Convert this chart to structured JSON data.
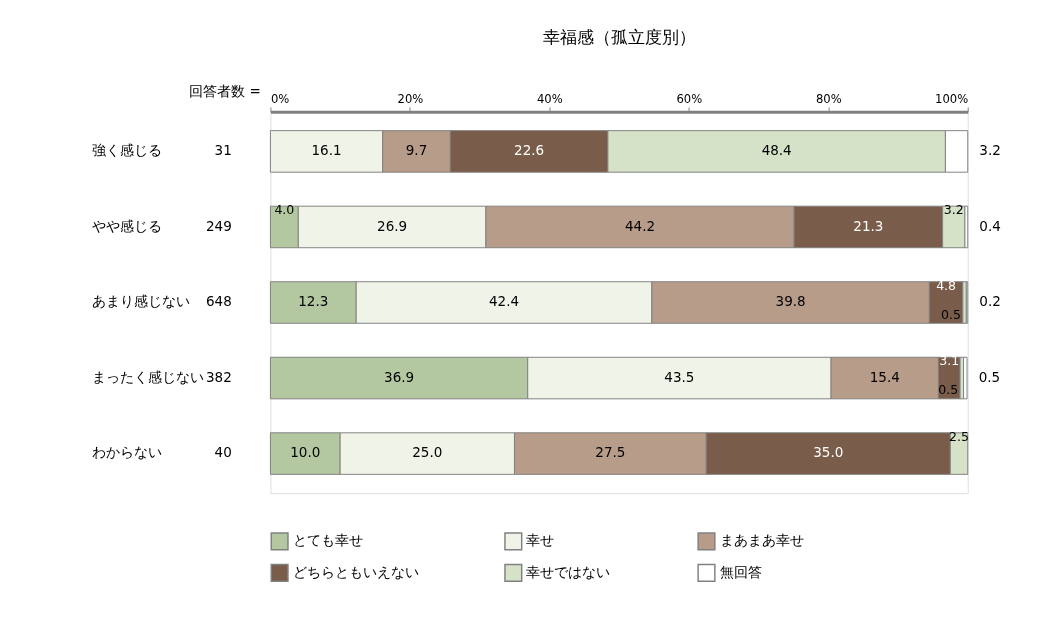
{
  "chart_data": {
    "type": "bar",
    "orientation": "horizontal",
    "stacked": true,
    "title": "幸福感（孤立度別）",
    "categories": [
      "強く感じる",
      "やや感じる",
      "あまり感じない",
      "まったく感じない",
      "わからない"
    ],
    "annotations": [
      "回答者数 =",
      "31",
      "249",
      "648",
      "382",
      "40"
    ],
    "series": [
      {
        "name": "とても幸せ",
        "color": "#b3c8a0",
        "values": [
          0,
          4.0,
          12.3,
          36.9,
          10.0
        ],
        "value_labels": [
          null,
          "4.0",
          "12.3",
          "36.9",
          "10.0"
        ]
      },
      {
        "name": "幸せ",
        "color": "#f0f3e8",
        "values": [
          16.1,
          26.9,
          42.4,
          43.5,
          25.0
        ],
        "value_labels": [
          "16.1",
          "26.9",
          "42.4",
          "43.5",
          "25.0"
        ]
      },
      {
        "name": "まあまあ幸せ",
        "color": "#b89c8a",
        "values": [
          9.7,
          44.2,
          39.8,
          15.4,
          27.5
        ],
        "value_labels": [
          "9.7",
          "44.2",
          "39.8",
          "15.4",
          "27.5"
        ]
      },
      {
        "name": "どちらともいえない",
        "color": "#7a5c4a",
        "values": [
          22.6,
          21.3,
          4.8,
          3.1,
          35.0
        ],
        "value_labels": [
          "22.6",
          "21.3",
          "4.8",
          "3.1",
          "35.0"
        ]
      },
      {
        "name": "幸せではない",
        "color": "#d6e2c8",
        "values": [
          48.4,
          3.2,
          0.5,
          0.5,
          2.5
        ],
        "value_labels": [
          "48.4",
          "3.2",
          "0.5",
          "0.5",
          "2.5"
        ]
      },
      {
        "name": "無回答",
        "color": "#ffffff",
        "values": [
          3.2,
          0.4,
          0.2,
          0.5,
          0
        ],
        "value_labels": [
          "3.2",
          "0.4",
          "0.2",
          "0.5",
          null
        ]
      }
    ],
    "xlim": [
      0,
      100
    ],
    "xticks": [
      {
        "value": 0,
        "label": "0%"
      },
      {
        "value": 20,
        "label": "20%"
      },
      {
        "value": 40,
        "label": "40%"
      },
      {
        "value": 60,
        "label": "60%"
      },
      {
        "value": 80,
        "label": "80%"
      },
      {
        "value": 100,
        "label": "100%"
      }
    ],
    "grid": false,
    "legend": "bottom"
  }
}
